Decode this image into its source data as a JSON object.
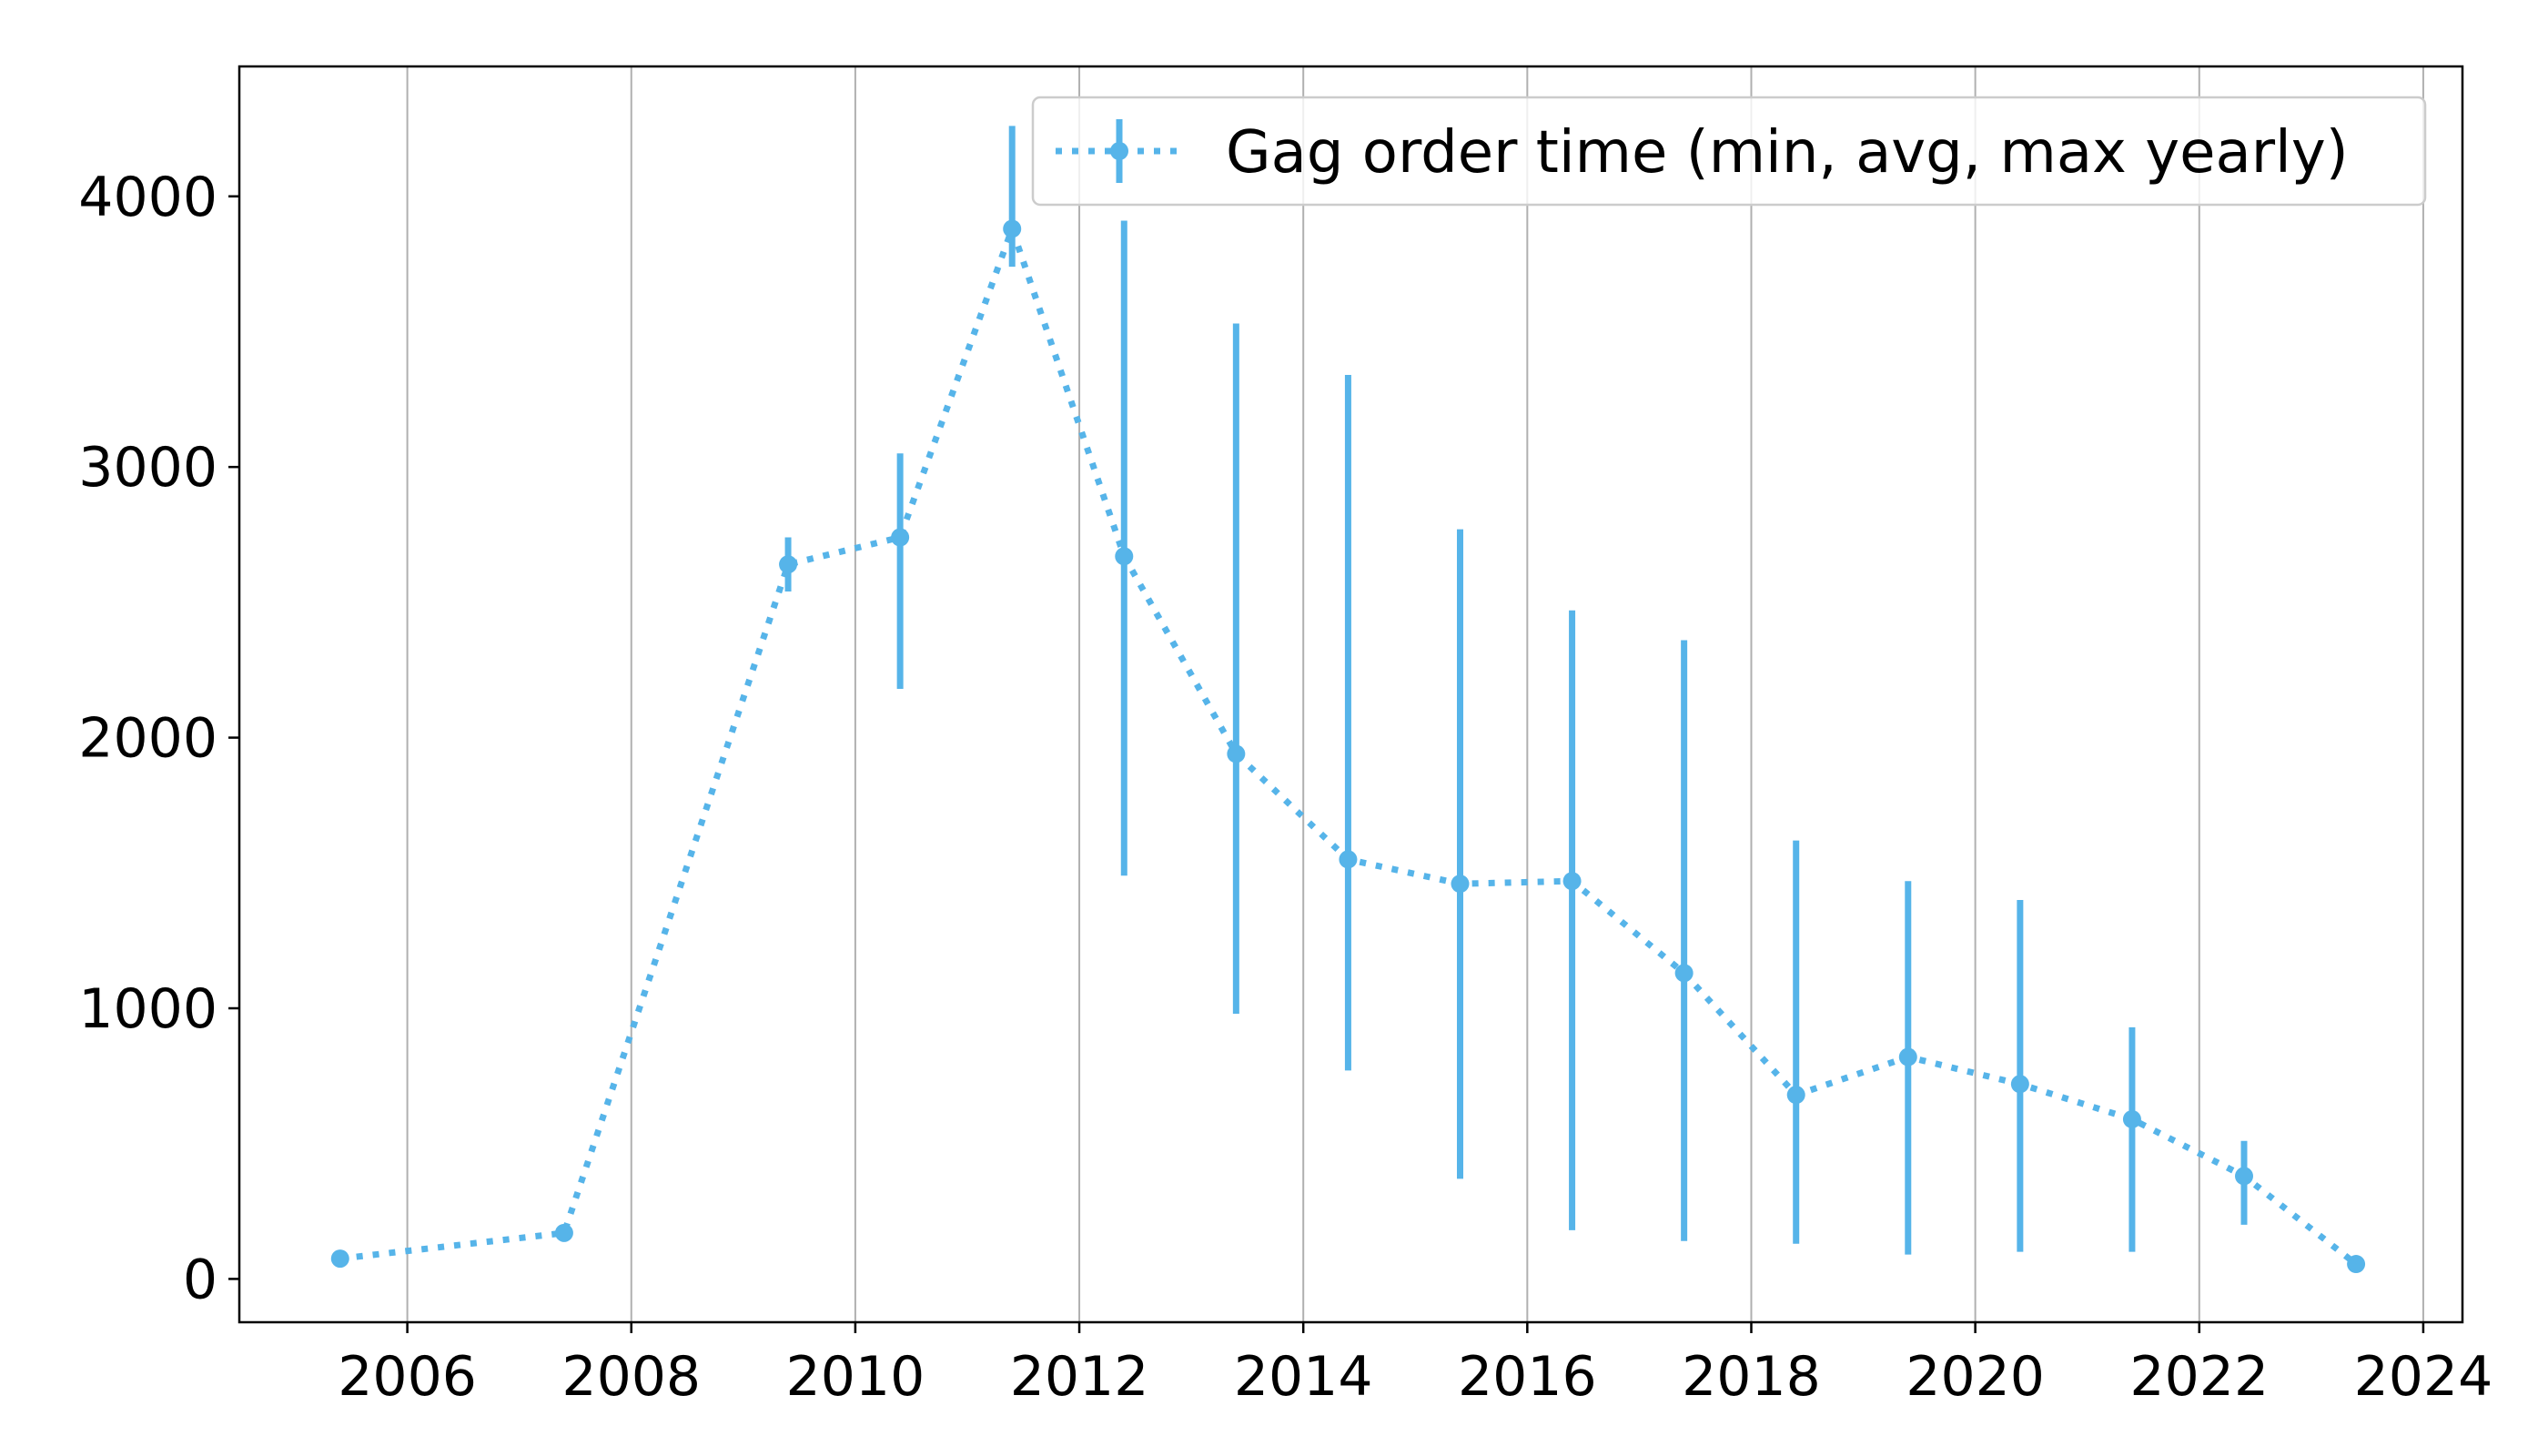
{
  "chart_data": {
    "type": "line",
    "title": "",
    "xlabel": "",
    "ylabel": "",
    "xlim": [
      2004.5,
      2024.35
    ],
    "ylim": [
      -160,
      4480
    ],
    "xticks": [
      2006,
      2008,
      2010,
      2012,
      2014,
      2016,
      2018,
      2020,
      2022,
      2024
    ],
    "yticks": [
      0,
      1000,
      2000,
      3000,
      4000
    ],
    "grid": "vertical",
    "legend_position": "top-right",
    "series": [
      {
        "name": "Gag order time (min, avg, max yearly)",
        "color": "#56b4e9",
        "line_style": "dotted",
        "marker": "circle",
        "points": [
          {
            "x": 2005.4,
            "avg": 75,
            "min": 75,
            "max": 75
          },
          {
            "x": 2007.4,
            "avg": 170,
            "min": 170,
            "max": 170
          },
          {
            "x": 2009.4,
            "avg": 2640,
            "min": 2540,
            "max": 2740
          },
          {
            "x": 2010.4,
            "avg": 2740,
            "min": 2180,
            "max": 3050
          },
          {
            "x": 2011.4,
            "avg": 3880,
            "min": 3740,
            "max": 4260
          },
          {
            "x": 2012.4,
            "avg": 2670,
            "min": 1490,
            "max": 3910
          },
          {
            "x": 2013.4,
            "avg": 1940,
            "min": 980,
            "max": 3530
          },
          {
            "x": 2014.4,
            "avg": 1550,
            "min": 770,
            "max": 3340
          },
          {
            "x": 2015.4,
            "avg": 1460,
            "min": 370,
            "max": 2770
          },
          {
            "x": 2016.4,
            "avg": 1470,
            "min": 180,
            "max": 2470
          },
          {
            "x": 2017.4,
            "avg": 1130,
            "min": 140,
            "max": 2360
          },
          {
            "x": 2018.4,
            "avg": 680,
            "min": 130,
            "max": 1620
          },
          {
            "x": 2019.4,
            "avg": 820,
            "min": 90,
            "max": 1470
          },
          {
            "x": 2020.4,
            "avg": 720,
            "min": 100,
            "max": 1400
          },
          {
            "x": 2021.4,
            "avg": 590,
            "min": 100,
            "max": 930
          },
          {
            "x": 2022.4,
            "avg": 380,
            "min": 200,
            "max": 510
          },
          {
            "x": 2023.4,
            "avg": 55,
            "min": 55,
            "max": 55
          }
        ]
      }
    ]
  }
}
